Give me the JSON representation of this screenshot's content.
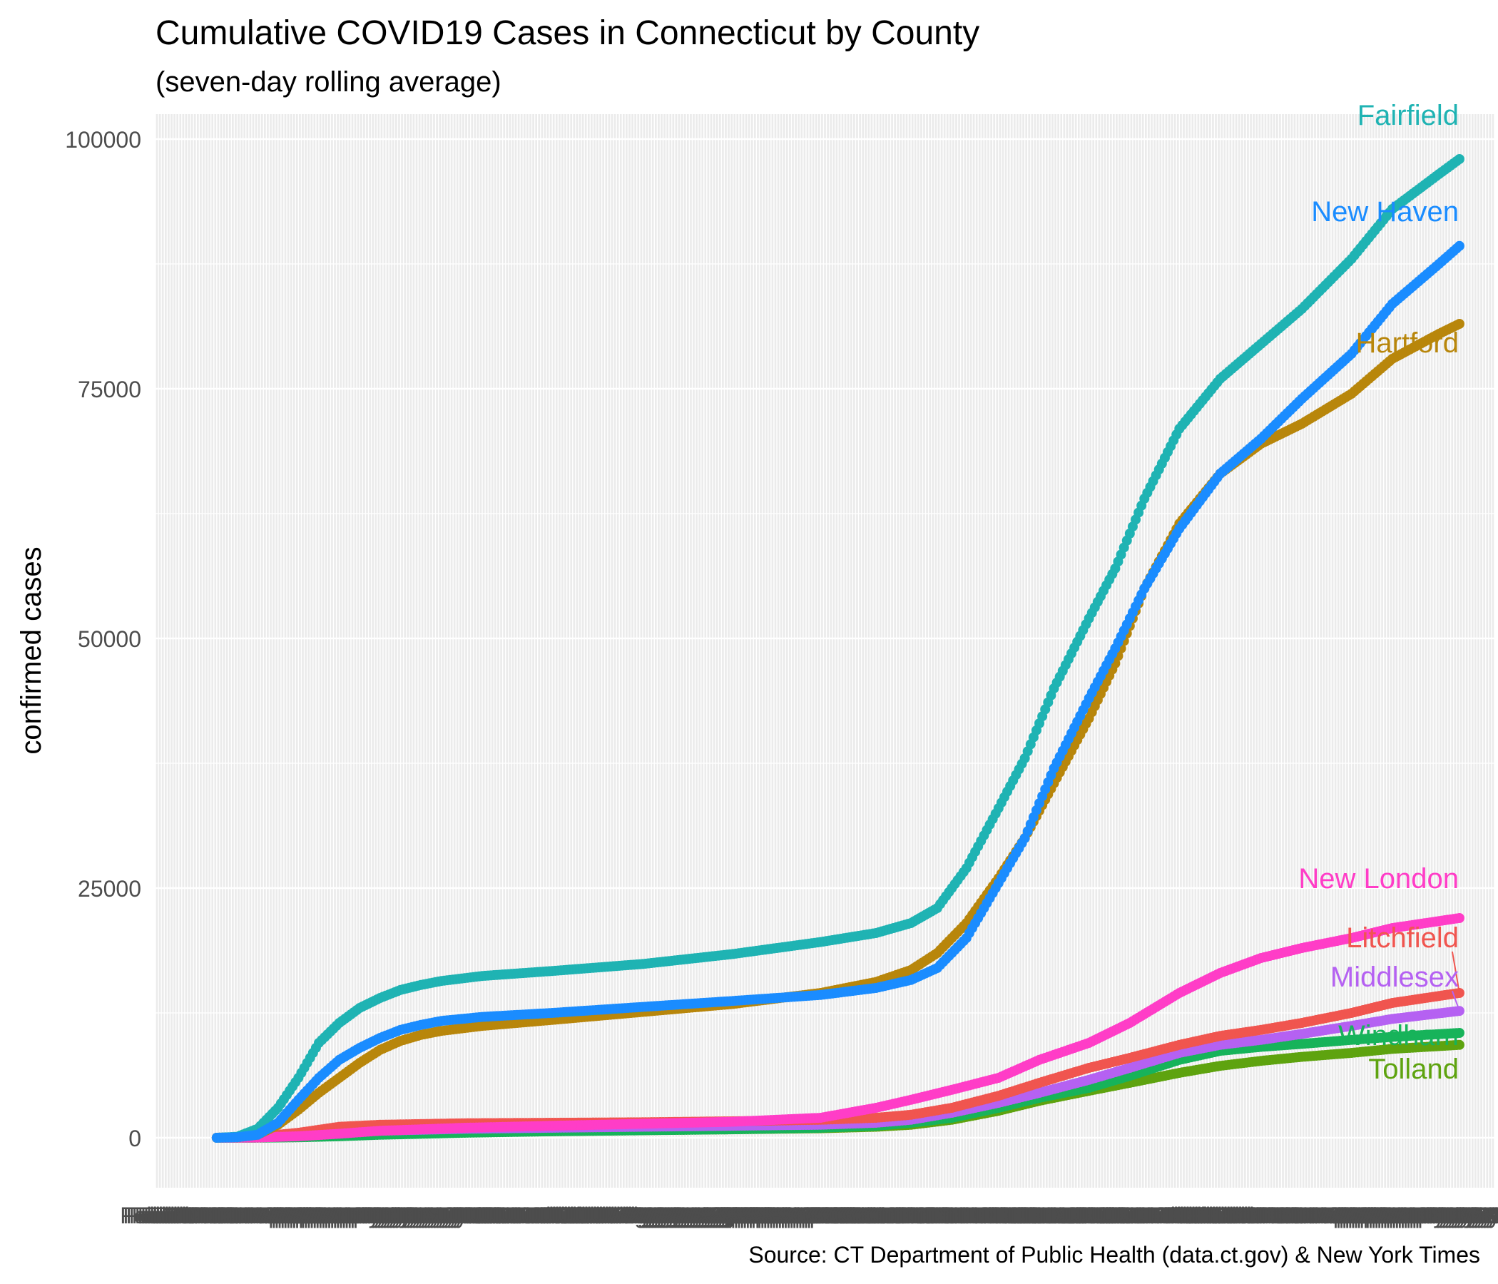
{
  "chart_data": {
    "type": "line",
    "title": "Cumulative COVID19 Cases in Connecticut by County",
    "subtitle": "(seven-day rolling average)",
    "ylabel": "confirmed cases",
    "xlabel": "",
    "caption": "Source: CT Department of Public Health (data.ct.gov) & New York Times",
    "ylim": [
      -5000,
      102500
    ],
    "xlim": [
      "2020-02-16",
      "2021-05-20"
    ],
    "x_tick_note": "one x-axis tick label per day; labels overlap into an unreadable band",
    "y_ticks": [
      0,
      25000,
      50000,
      75000,
      100000
    ],
    "grid": true,
    "legend": "none (direct labels at line ends)",
    "markers": "points on every day",
    "series": [
      {
        "name": "Fairfield",
        "color": "#1fb3b3",
        "points": [
          [
            "2020-03-08",
            0
          ],
          [
            "2020-03-15",
            100
          ],
          [
            "2020-03-22",
            900
          ],
          [
            "2020-03-29",
            3000
          ],
          [
            "2020-04-05",
            6000
          ],
          [
            "2020-04-12",
            9500
          ],
          [
            "2020-04-19",
            11500
          ],
          [
            "2020-04-26",
            13000
          ],
          [
            "2020-05-03",
            14000
          ],
          [
            "2020-05-10",
            14800
          ],
          [
            "2020-05-17",
            15300
          ],
          [
            "2020-05-24",
            15700
          ],
          [
            "2020-06-07",
            16200
          ],
          [
            "2020-07-01",
            16700
          ],
          [
            "2020-08-01",
            17400
          ],
          [
            "2020-09-01",
            18400
          ],
          [
            "2020-10-01",
            19600
          ],
          [
            "2020-10-20",
            20500
          ],
          [
            "2020-11-01",
            21500
          ],
          [
            "2020-11-10",
            23000
          ],
          [
            "2020-11-20",
            27000
          ],
          [
            "2020-12-01",
            33000
          ],
          [
            "2020-12-10",
            38000
          ],
          [
            "2020-12-20",
            45000
          ],
          [
            "2021-01-01",
            52000
          ],
          [
            "2021-01-10",
            57000
          ],
          [
            "2021-01-20",
            64000
          ],
          [
            "2021-02-01",
            71000
          ],
          [
            "2021-02-15",
            76000
          ],
          [
            "2021-03-01",
            79500
          ],
          [
            "2021-03-15",
            83000
          ],
          [
            "2021-04-01",
            88000
          ],
          [
            "2021-04-15",
            93000
          ],
          [
            "2021-05-01",
            96500
          ],
          [
            "2021-05-08",
            98000
          ]
        ]
      },
      {
        "name": "New Haven",
        "color": "#1a8cff",
        "points": [
          [
            "2020-03-08",
            0
          ],
          [
            "2020-03-15",
            50
          ],
          [
            "2020-03-22",
            300
          ],
          [
            "2020-03-29",
            1500
          ],
          [
            "2020-04-05",
            3800
          ],
          [
            "2020-04-12",
            6000
          ],
          [
            "2020-04-19",
            7800
          ],
          [
            "2020-04-26",
            9000
          ],
          [
            "2020-05-03",
            10000
          ],
          [
            "2020-05-10",
            10800
          ],
          [
            "2020-05-17",
            11300
          ],
          [
            "2020-05-24",
            11700
          ],
          [
            "2020-06-07",
            12100
          ],
          [
            "2020-07-01",
            12500
          ],
          [
            "2020-08-01",
            13100
          ],
          [
            "2020-09-01",
            13700
          ],
          [
            "2020-10-01",
            14300
          ],
          [
            "2020-10-20",
            15000
          ],
          [
            "2020-11-01",
            15800
          ],
          [
            "2020-11-10",
            17000
          ],
          [
            "2020-11-20",
            20000
          ],
          [
            "2020-12-01",
            25500
          ],
          [
            "2020-12-10",
            30000
          ],
          [
            "2020-12-20",
            37000
          ],
          [
            "2021-01-01",
            44000
          ],
          [
            "2021-01-10",
            49000
          ],
          [
            "2021-01-20",
            55000
          ],
          [
            "2021-02-01",
            61000
          ],
          [
            "2021-02-15",
            66500
          ],
          [
            "2021-03-01",
            70000
          ],
          [
            "2021-03-15",
            74000
          ],
          [
            "2021-04-01",
            78500
          ],
          [
            "2021-04-15",
            83500
          ],
          [
            "2021-05-01",
            87500
          ],
          [
            "2021-05-08",
            89300
          ]
        ]
      },
      {
        "name": "Hartford",
        "color": "#b8860b",
        "points": [
          [
            "2020-03-08",
            0
          ],
          [
            "2020-03-15",
            50
          ],
          [
            "2020-03-22",
            300
          ],
          [
            "2020-03-29",
            1300
          ],
          [
            "2020-04-05",
            2800
          ],
          [
            "2020-04-12",
            4500
          ],
          [
            "2020-04-19",
            6000
          ],
          [
            "2020-04-26",
            7500
          ],
          [
            "2020-05-03",
            8800
          ],
          [
            "2020-05-10",
            9700
          ],
          [
            "2020-05-17",
            10300
          ],
          [
            "2020-05-24",
            10700
          ],
          [
            "2020-06-07",
            11200
          ],
          [
            "2020-07-01",
            11800
          ],
          [
            "2020-08-01",
            12600
          ],
          [
            "2020-09-01",
            13400
          ],
          [
            "2020-10-01",
            14500
          ],
          [
            "2020-10-20",
            15600
          ],
          [
            "2020-11-01",
            16800
          ],
          [
            "2020-11-10",
            18500
          ],
          [
            "2020-11-20",
            21500
          ],
          [
            "2020-12-01",
            26000
          ],
          [
            "2020-12-10",
            30000
          ],
          [
            "2020-12-20",
            35500
          ],
          [
            "2021-01-01",
            42000
          ],
          [
            "2021-01-10",
            47500
          ],
          [
            "2021-01-20",
            55000
          ],
          [
            "2021-02-01",
            61500
          ],
          [
            "2021-02-15",
            66500
          ],
          [
            "2021-03-01",
            69500
          ],
          [
            "2021-03-15",
            71500
          ],
          [
            "2021-04-01",
            74500
          ],
          [
            "2021-04-15",
            78000
          ],
          [
            "2021-05-01",
            80500
          ],
          [
            "2021-05-08",
            81500
          ]
        ]
      },
      {
        "name": "New London",
        "color": "#ff3dc7",
        "points": [
          [
            "2020-03-08",
            0
          ],
          [
            "2020-03-22",
            20
          ],
          [
            "2020-04-05",
            150
          ],
          [
            "2020-04-19",
            400
          ],
          [
            "2020-05-03",
            700
          ],
          [
            "2020-06-01",
            1000
          ],
          [
            "2020-07-01",
            1200
          ],
          [
            "2020-08-01",
            1400
          ],
          [
            "2020-09-01",
            1600
          ],
          [
            "2020-10-01",
            2000
          ],
          [
            "2020-10-20",
            3000
          ],
          [
            "2020-11-01",
            3800
          ],
          [
            "2020-11-15",
            4800
          ],
          [
            "2020-12-01",
            6000
          ],
          [
            "2020-12-15",
            7800
          ],
          [
            "2021-01-01",
            9500
          ],
          [
            "2021-01-15",
            11500
          ],
          [
            "2021-02-01",
            14500
          ],
          [
            "2021-02-15",
            16500
          ],
          [
            "2021-03-01",
            18000
          ],
          [
            "2021-03-15",
            19000
          ],
          [
            "2021-04-01",
            20000
          ],
          [
            "2021-04-15",
            21000
          ],
          [
            "2021-05-08",
            22000
          ]
        ]
      },
      {
        "name": "Litchfield",
        "color": "#f0554f",
        "points": [
          [
            "2020-03-08",
            0
          ],
          [
            "2020-03-22",
            100
          ],
          [
            "2020-04-05",
            500
          ],
          [
            "2020-04-19",
            1100
          ],
          [
            "2020-05-03",
            1300
          ],
          [
            "2020-06-01",
            1450
          ],
          [
            "2020-07-01",
            1500
          ],
          [
            "2020-08-01",
            1550
          ],
          [
            "2020-09-01",
            1650
          ],
          [
            "2020-10-01",
            1800
          ],
          [
            "2020-10-20",
            2000
          ],
          [
            "2020-11-01",
            2300
          ],
          [
            "2020-11-15",
            3000
          ],
          [
            "2020-12-01",
            4200
          ],
          [
            "2020-12-15",
            5500
          ],
          [
            "2021-01-01",
            7000
          ],
          [
            "2021-01-15",
            8000
          ],
          [
            "2021-02-01",
            9300
          ],
          [
            "2021-02-15",
            10200
          ],
          [
            "2021-03-01",
            10800
          ],
          [
            "2021-03-15",
            11500
          ],
          [
            "2021-04-01",
            12500
          ],
          [
            "2021-04-15",
            13500
          ],
          [
            "2021-05-08",
            14500
          ]
        ]
      },
      {
        "name": "Middlesex",
        "color": "#b561f2",
        "points": [
          [
            "2020-03-08",
            0
          ],
          [
            "2020-03-22",
            30
          ],
          [
            "2020-04-05",
            200
          ],
          [
            "2020-04-19",
            500
          ],
          [
            "2020-05-03",
            700
          ],
          [
            "2020-06-01",
            900
          ],
          [
            "2020-07-01",
            1000
          ],
          [
            "2020-08-01",
            1100
          ],
          [
            "2020-09-01",
            1200
          ],
          [
            "2020-10-01",
            1300
          ],
          [
            "2020-10-20",
            1500
          ],
          [
            "2020-11-01",
            1800
          ],
          [
            "2020-11-15",
            2500
          ],
          [
            "2020-12-01",
            3500
          ],
          [
            "2020-12-15",
            4500
          ],
          [
            "2021-01-01",
            5800
          ],
          [
            "2021-01-15",
            7000
          ],
          [
            "2021-02-01",
            8500
          ],
          [
            "2021-02-15",
            9300
          ],
          [
            "2021-03-01",
            9800
          ],
          [
            "2021-03-15",
            10400
          ],
          [
            "2021-04-01",
            11200
          ],
          [
            "2021-04-15",
            11900
          ],
          [
            "2021-05-08",
            12700
          ]
        ]
      },
      {
        "name": "Windham",
        "color": "#17b35a",
        "points": [
          [
            "2020-03-08",
            0
          ],
          [
            "2020-03-22",
            10
          ],
          [
            "2020-04-05",
            50
          ],
          [
            "2020-04-19",
            150
          ],
          [
            "2020-05-03",
            300
          ],
          [
            "2020-06-01",
            500
          ],
          [
            "2020-07-01",
            650
          ],
          [
            "2020-08-01",
            750
          ],
          [
            "2020-09-01",
            850
          ],
          [
            "2020-10-01",
            1000
          ],
          [
            "2020-10-20",
            1200
          ],
          [
            "2020-11-01",
            1500
          ],
          [
            "2020-11-15",
            2000
          ],
          [
            "2020-12-01",
            3000
          ],
          [
            "2020-12-15",
            4000
          ],
          [
            "2021-01-01",
            5000
          ],
          [
            "2021-01-15",
            6200
          ],
          [
            "2021-02-01",
            7800
          ],
          [
            "2021-02-15",
            8700
          ],
          [
            "2021-03-01",
            9100
          ],
          [
            "2021-03-15",
            9400
          ],
          [
            "2021-04-01",
            9800
          ],
          [
            "2021-04-15",
            10100
          ],
          [
            "2021-05-08",
            10500
          ]
        ]
      },
      {
        "name": "Tolland",
        "color": "#5ea30f",
        "points": [
          [
            "2020-03-08",
            0
          ],
          [
            "2020-03-22",
            10
          ],
          [
            "2020-04-05",
            60
          ],
          [
            "2020-04-19",
            180
          ],
          [
            "2020-05-03",
            350
          ],
          [
            "2020-06-01",
            550
          ],
          [
            "2020-07-01",
            650
          ],
          [
            "2020-08-01",
            750
          ],
          [
            "2020-09-01",
            850
          ],
          [
            "2020-10-01",
            950
          ],
          [
            "2020-10-20",
            1100
          ],
          [
            "2020-11-01",
            1300
          ],
          [
            "2020-11-15",
            1800
          ],
          [
            "2020-12-01",
            2700
          ],
          [
            "2020-12-15",
            3700
          ],
          [
            "2021-01-01",
            4700
          ],
          [
            "2021-01-15",
            5500
          ],
          [
            "2021-02-01",
            6500
          ],
          [
            "2021-02-15",
            7200
          ],
          [
            "2021-03-01",
            7700
          ],
          [
            "2021-03-15",
            8100
          ],
          [
            "2021-04-01",
            8500
          ],
          [
            "2021-04-15",
            8900
          ],
          [
            "2021-05-08",
            9300
          ]
        ]
      }
    ]
  }
}
